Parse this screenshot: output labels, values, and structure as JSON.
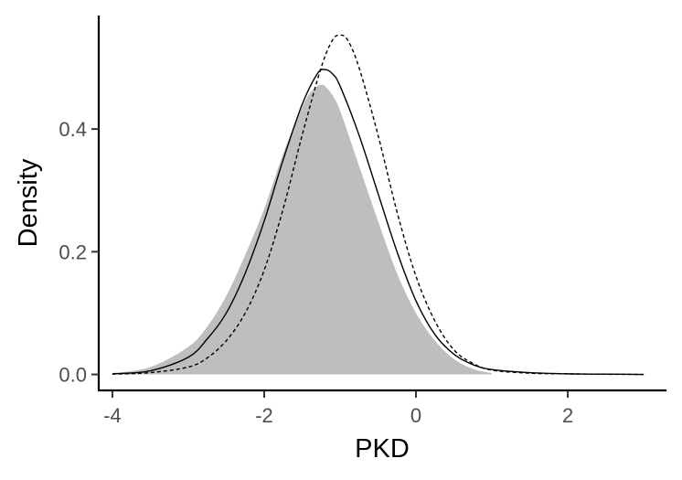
{
  "chart_data": {
    "type": "area",
    "xlabel": "PKD",
    "ylabel": "Density",
    "xlim": [
      -4.18,
      3.3
    ],
    "ylim": [
      -0.026,
      0.585
    ],
    "xticks": [
      -4,
      -2,
      0,
      2
    ],
    "xtick_labels": [
      "-4",
      "-2",
      "0",
      "2"
    ],
    "yticks": [
      0.0,
      0.2,
      0.4
    ],
    "ytick_labels": [
      "0.0",
      "0.2",
      "0.4"
    ],
    "grid": false,
    "series": [
      {
        "style": "filled-area",
        "color": "#bebebe",
        "x": [
          -4.0,
          -3.5,
          -3.0,
          -2.75,
          -2.5,
          -2.25,
          -2.0,
          -1.75,
          -1.5,
          -1.4,
          -1.3,
          -1.25,
          -1.2,
          -1.1,
          -1.0,
          -0.75,
          -0.5,
          -0.25,
          0.0,
          0.25,
          0.5,
          0.75,
          1.0
        ],
        "y": [
          0.002,
          0.012,
          0.045,
          0.078,
          0.128,
          0.195,
          0.27,
          0.36,
          0.435,
          0.458,
          0.47,
          0.472,
          0.47,
          0.455,
          0.43,
          0.34,
          0.25,
          0.165,
          0.1,
          0.055,
          0.025,
          0.009,
          0.002
        ]
      },
      {
        "style": "solid-line",
        "color": "#000000",
        "x": [
          -4.0,
          -3.5,
          -3.0,
          -2.75,
          -2.5,
          -2.25,
          -2.0,
          -1.75,
          -1.5,
          -1.3,
          -1.2,
          -1.1,
          -1.0,
          -0.75,
          -0.5,
          -0.25,
          0.0,
          0.25,
          0.5,
          0.75,
          1.0,
          1.5,
          2.0,
          2.5,
          3.0
        ],
        "y": [
          0.001,
          0.006,
          0.028,
          0.058,
          0.1,
          0.165,
          0.25,
          0.35,
          0.44,
          0.49,
          0.497,
          0.49,
          0.47,
          0.39,
          0.295,
          0.2,
          0.12,
          0.065,
          0.033,
          0.016,
          0.008,
          0.003,
          0.001,
          0.0005,
          0.0
        ]
      },
      {
        "style": "dashed-line",
        "color": "#000000",
        "x": [
          -4.0,
          -3.5,
          -3.0,
          -2.75,
          -2.5,
          -2.25,
          -2.0,
          -1.75,
          -1.5,
          -1.25,
          -1.1,
          -1.0,
          -0.9,
          -0.75,
          -0.5,
          -0.25,
          0.0,
          0.25,
          0.5,
          0.75,
          1.0,
          1.5,
          2.0,
          2.5,
          3.0
        ],
        "y": [
          0.0005,
          0.003,
          0.012,
          0.027,
          0.055,
          0.1,
          0.17,
          0.27,
          0.39,
          0.5,
          0.545,
          0.553,
          0.545,
          0.5,
          0.39,
          0.265,
          0.16,
          0.087,
          0.04,
          0.018,
          0.007,
          0.002,
          0.001,
          0.0003,
          0.0
        ]
      }
    ]
  }
}
